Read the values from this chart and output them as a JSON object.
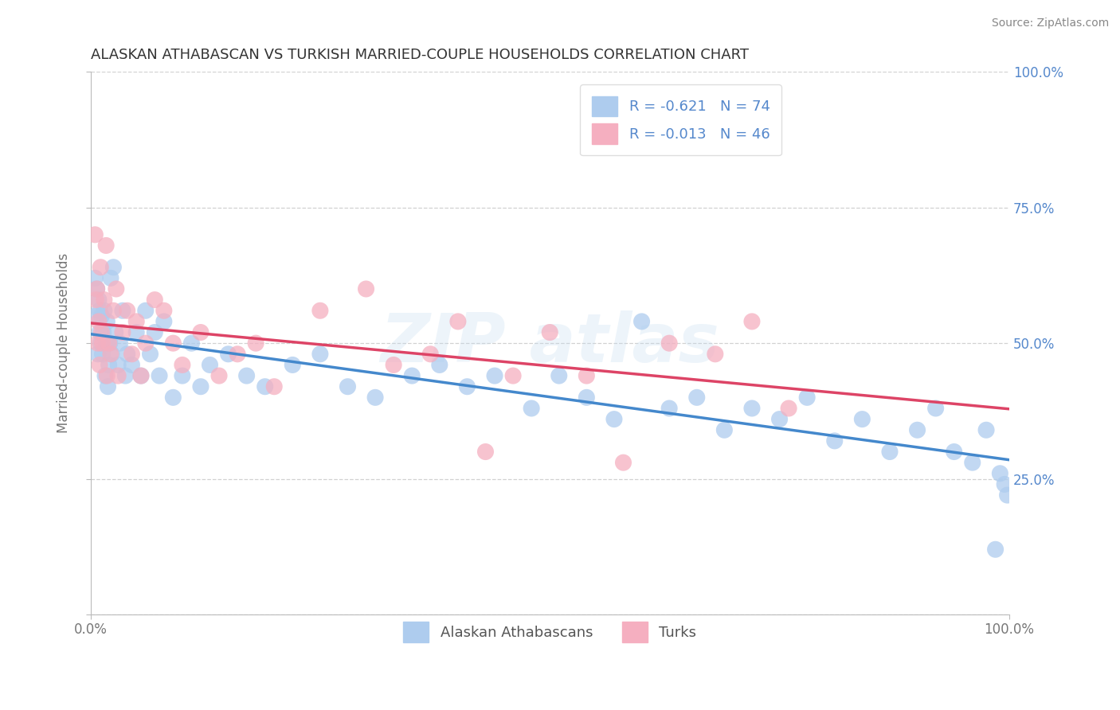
{
  "title": "ALASKAN ATHABASCAN VS TURKISH MARRIED-COUPLE HOUSEHOLDS CORRELATION CHART",
  "source": "Source: ZipAtlas.com",
  "ylabel": "Married-couple Households",
  "legend_blue_label": "Alaskan Athabascans",
  "legend_pink_label": "Turks",
  "R_blue": -0.621,
  "N_blue": 74,
  "R_pink": -0.013,
  "N_pink": 46,
  "blue_color": "#aeccee",
  "pink_color": "#f5afc0",
  "blue_line_color": "#4488cc",
  "pink_line_color": "#dd4466",
  "background_color": "#ffffff",
  "grid_color": "#cccccc",
  "label_color": "#5588cc",
  "title_color": "#333333",
  "source_color": "#888888",
  "xlim": [
    0,
    1
  ],
  "ylim": [
    0,
    1
  ],
  "blue_x": [
    0.005,
    0.006,
    0.007,
    0.008,
    0.009,
    0.01,
    0.01,
    0.011,
    0.012,
    0.013,
    0.014,
    0.015,
    0.016,
    0.017,
    0.018,
    0.019,
    0.02,
    0.021,
    0.022,
    0.023,
    0.025,
    0.027,
    0.03,
    0.032,
    0.035,
    0.038,
    0.04,
    0.045,
    0.05,
    0.055,
    0.06,
    0.065,
    0.07,
    0.075,
    0.08,
    0.09,
    0.1,
    0.11,
    0.12,
    0.13,
    0.15,
    0.17,
    0.19,
    0.22,
    0.25,
    0.28,
    0.31,
    0.35,
    0.38,
    0.41,
    0.44,
    0.48,
    0.51,
    0.54,
    0.57,
    0.6,
    0.63,
    0.66,
    0.69,
    0.72,
    0.75,
    0.78,
    0.81,
    0.84,
    0.87,
    0.9,
    0.92,
    0.94,
    0.96,
    0.975,
    0.985,
    0.99,
    0.995,
    0.998
  ],
  "blue_y": [
    0.62,
    0.55,
    0.6,
    0.48,
    0.58,
    0.52,
    0.56,
    0.5,
    0.55,
    0.48,
    0.52,
    0.56,
    0.44,
    0.5,
    0.54,
    0.42,
    0.46,
    0.5,
    0.62,
    0.48,
    0.64,
    0.52,
    0.46,
    0.5,
    0.56,
    0.44,
    0.48,
    0.46,
    0.52,
    0.44,
    0.56,
    0.48,
    0.52,
    0.44,
    0.54,
    0.4,
    0.44,
    0.5,
    0.42,
    0.46,
    0.48,
    0.44,
    0.42,
    0.46,
    0.48,
    0.42,
    0.4,
    0.44,
    0.46,
    0.42,
    0.44,
    0.38,
    0.44,
    0.4,
    0.36,
    0.54,
    0.38,
    0.4,
    0.34,
    0.38,
    0.36,
    0.4,
    0.32,
    0.36,
    0.3,
    0.34,
    0.38,
    0.3,
    0.28,
    0.34,
    0.12,
    0.26,
    0.24,
    0.22
  ],
  "pink_x": [
    0.005,
    0.006,
    0.007,
    0.008,
    0.009,
    0.01,
    0.011,
    0.012,
    0.013,
    0.015,
    0.017,
    0.018,
    0.02,
    0.022,
    0.025,
    0.028,
    0.03,
    0.035,
    0.04,
    0.045,
    0.05,
    0.055,
    0.06,
    0.07,
    0.08,
    0.09,
    0.1,
    0.12,
    0.14,
    0.16,
    0.18,
    0.2,
    0.25,
    0.3,
    0.33,
    0.37,
    0.4,
    0.43,
    0.46,
    0.5,
    0.54,
    0.58,
    0.63,
    0.68,
    0.72,
    0.76
  ],
  "pink_y": [
    0.7,
    0.58,
    0.6,
    0.5,
    0.54,
    0.46,
    0.64,
    0.52,
    0.5,
    0.58,
    0.68,
    0.44,
    0.5,
    0.48,
    0.56,
    0.6,
    0.44,
    0.52,
    0.56,
    0.48,
    0.54,
    0.44,
    0.5,
    0.58,
    0.56,
    0.5,
    0.46,
    0.52,
    0.44,
    0.48,
    0.5,
    0.42,
    0.56,
    0.6,
    0.46,
    0.48,
    0.54,
    0.3,
    0.44,
    0.52,
    0.44,
    0.28,
    0.5,
    0.48,
    0.54,
    0.38
  ]
}
